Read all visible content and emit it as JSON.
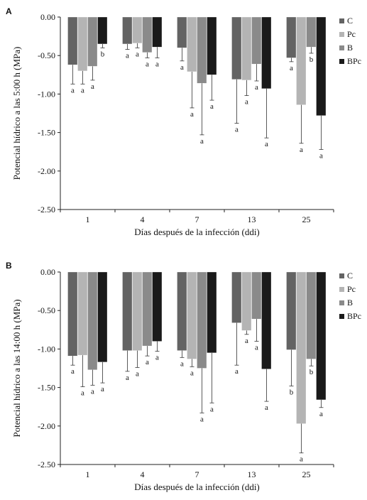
{
  "chart_data": [
    {
      "panel": "A",
      "type": "bar",
      "categories": [
        "1",
        "4",
        "7",
        "13",
        "25"
      ],
      "xlabel": "Días después de la infección (ddi)",
      "ylabel": "Potencial hídrico a las 5:00 h (MPa)",
      "ylim": [
        -2.5,
        0.0
      ],
      "yticks": [
        "0.00",
        "-0.50",
        "-1.00",
        "-1.50",
        "-2.00",
        "-2.50"
      ],
      "legend_position": "top-right",
      "series": [
        {
          "name": "C",
          "color": "#636363",
          "values": [
            -0.62,
            -0.35,
            -0.4,
            -0.81,
            -0.53
          ],
          "errors": [
            0.25,
            0.07,
            0.17,
            0.57,
            0.05
          ],
          "letters": [
            "a",
            "a",
            "a",
            "a",
            "a"
          ]
        },
        {
          "name": "Pc",
          "color": "#b4b4b4",
          "values": [
            -0.7,
            -0.34,
            -0.71,
            -0.82,
            -1.14
          ],
          "errors": [
            0.17,
            0.06,
            0.47,
            0.2,
            0.5
          ],
          "letters": [
            "a",
            "a",
            "a",
            "a",
            "a"
          ]
        },
        {
          "name": "B",
          "color": "#8a8a8a",
          "values": [
            -0.64,
            -0.46,
            -0.86,
            -0.61,
            -0.39
          ],
          "errors": [
            0.18,
            0.07,
            0.67,
            0.22,
            0.08
          ],
          "letters": [
            "a",
            "a",
            "a",
            "a",
            "b"
          ]
        },
        {
          "name": "BPc",
          "color": "#1a1a1a",
          "values": [
            -0.35,
            -0.39,
            -0.75,
            -0.93,
            -1.28
          ],
          "errors": [
            0.05,
            0.14,
            0.33,
            0.64,
            0.44
          ],
          "letters": [
            "b",
            "a",
            "a",
            "a",
            "a"
          ]
        }
      ]
    },
    {
      "panel": "B",
      "type": "bar",
      "categories": [
        "1",
        "4",
        "7",
        "13",
        "25"
      ],
      "xlabel": "Días después de la infección (ddi)",
      "ylabel": "Potencial hídrico a las 14:00 h (MPa)",
      "ylim": [
        -2.5,
        0.0
      ],
      "yticks": [
        "0.00",
        "-0.50",
        "-1.00",
        "-1.50",
        "-2.00",
        "-2.50"
      ],
      "legend_position": "top-right",
      "series": [
        {
          "name": "C",
          "color": "#636363",
          "values": [
            -1.09,
            -1.02,
            -1.02,
            -0.66,
            -1.01
          ],
          "errors": [
            0.12,
            0.27,
            0.09,
            0.55,
            0.47
          ],
          "letters": [
            "a",
            "a",
            "a",
            "a",
            "b"
          ]
        },
        {
          "name": "Pc",
          "color": "#b4b4b4",
          "values": [
            -1.08,
            -1.02,
            -1.13,
            -0.76,
            -1.97
          ],
          "errors": [
            0.41,
            0.22,
            0.1,
            0.05,
            0.38
          ],
          "letters": [
            "a",
            "a",
            "a",
            "a",
            "a"
          ]
        },
        {
          "name": "B",
          "color": "#8a8a8a",
          "values": [
            -1.27,
            -0.96,
            -1.25,
            -0.61,
            -1.13
          ],
          "errors": [
            0.2,
            0.13,
            0.58,
            0.29,
            0.09
          ],
          "letters": [
            "a",
            "a",
            "a",
            "a",
            "b"
          ]
        },
        {
          "name": "BPc",
          "color": "#1a1a1a",
          "values": [
            -1.17,
            -0.9,
            -1.05,
            -1.26,
            -1.66
          ],
          "errors": [
            0.27,
            0.13,
            0.65,
            0.42,
            0.1
          ],
          "letters": [
            "a",
            "a",
            "a",
            "a",
            "a"
          ]
        }
      ]
    }
  ]
}
